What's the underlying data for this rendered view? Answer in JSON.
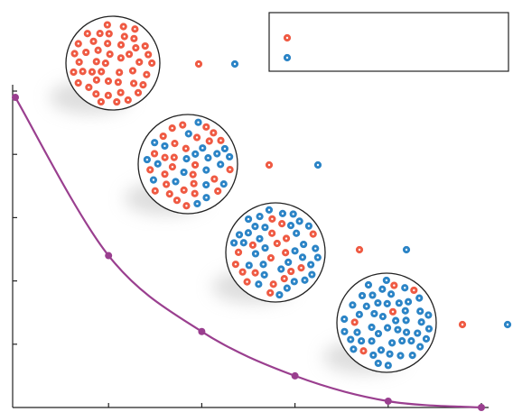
{
  "chart_data": {
    "type": "line",
    "x": [
      0,
      1,
      2,
      3,
      4,
      5
    ],
    "series": [
      {
        "color": "#9a3f8f",
        "values": [
          4.9,
          2.4,
          1.2,
          0.5,
          0.1,
          0
        ]
      }
    ],
    "xlim": [
      0,
      5
    ],
    "ylim": [
      0,
      5.1
    ],
    "xticks": [
      1,
      2,
      3,
      4,
      5
    ],
    "yticks": [
      1,
      2,
      3,
      4,
      5
    ],
    "dot_colors": [
      "#ef5a43",
      "#2b84c6"
    ]
  }
}
